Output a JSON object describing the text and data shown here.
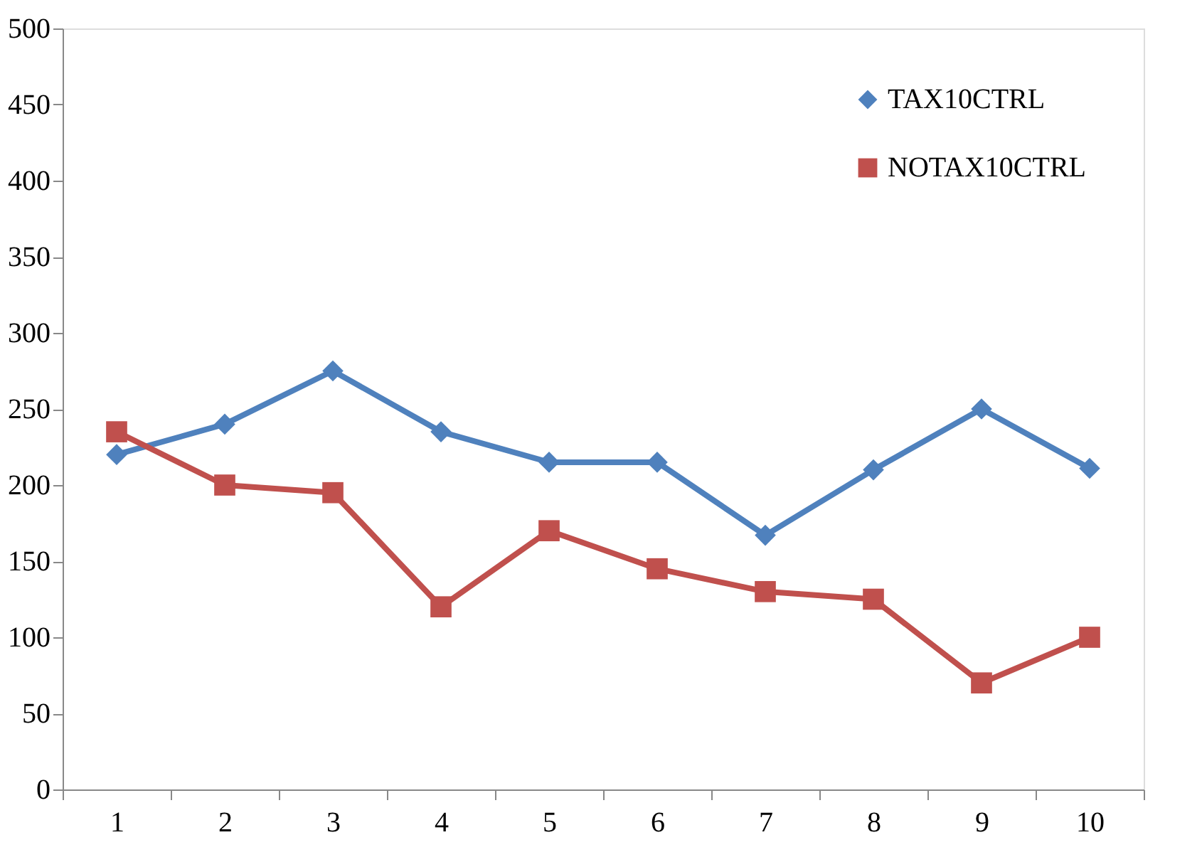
{
  "chart_data": {
    "type": "line",
    "categories": [
      "1",
      "2",
      "3",
      "4",
      "5",
      "6",
      "7",
      "8",
      "9",
      "10"
    ],
    "series": [
      {
        "name": "TAX10CTRL",
        "color": "#4f81bd",
        "marker": "diamond",
        "values": [
          220,
          240,
          275,
          235,
          215,
          215,
          167,
          210,
          250,
          211
        ]
      },
      {
        "name": "NOTAX10CTRL",
        "color": "#c0504d",
        "marker": "square",
        "values": [
          235,
          200,
          195,
          120,
          170,
          145,
          130,
          125,
          70,
          100
        ]
      }
    ],
    "ylim": [
      0,
      500
    ],
    "yticks": [
      0,
      50,
      100,
      150,
      200,
      250,
      300,
      350,
      400,
      450,
      500
    ],
    "grid": false,
    "legend": "top right",
    "line_style": "solid"
  }
}
